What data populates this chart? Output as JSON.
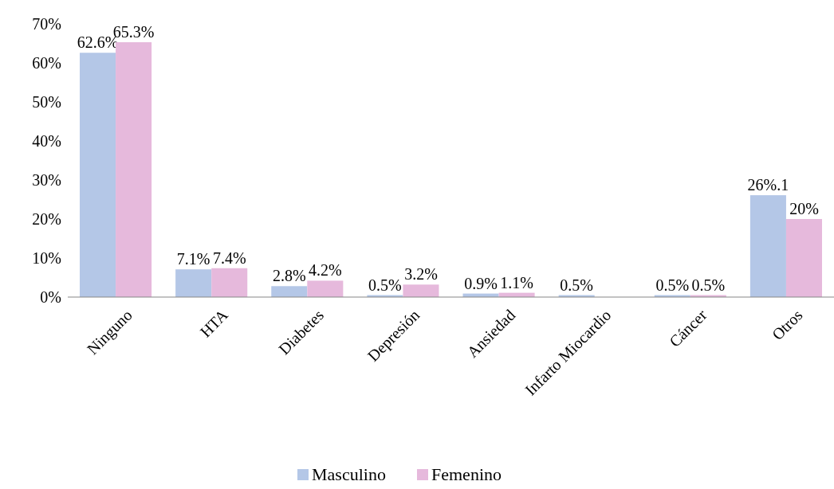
{
  "chart_data": {
    "type": "bar",
    "categories": [
      "Ninguno",
      "HTA",
      "Diabetes",
      "Depresión",
      "Ansiedad",
      "Infarto Miocardio",
      "Cáncer",
      "Otros"
    ],
    "series": [
      {
        "name": "Masculino",
        "color": "#b4c7e7",
        "values": [
          62.6,
          7.1,
          2.8,
          0.5,
          0.9,
          0.5,
          0.5,
          26.1
        ],
        "value_labels": [
          "62.6%",
          "7.1%",
          "2.8%",
          "0.5%",
          "0.9%",
          "0.5%",
          "0.5%",
          "26%.1"
        ]
      },
      {
        "name": "Femenino",
        "color": "#e6b9dc",
        "values": [
          65.3,
          7.4,
          4.2,
          3.2,
          1.1,
          null,
          0.5,
          20
        ],
        "value_labels": [
          "65.3%",
          "7.4%",
          "4.2%",
          "3.2%",
          "1.1%",
          null,
          "0.5%",
          "20%"
        ]
      }
    ],
    "ylim": [
      0,
      70
    ],
    "yticks": [
      {
        "value": 0,
        "label": "0%"
      },
      {
        "value": 10,
        "label": "10%"
      },
      {
        "value": 20,
        "label": "20%"
      },
      {
        "value": 30,
        "label": "30%"
      },
      {
        "value": 40,
        "label": "40%"
      },
      {
        "value": 50,
        "label": "50%"
      },
      {
        "value": 60,
        "label": "60%"
      },
      {
        "value": 70,
        "label": "70%"
      }
    ],
    "grid": false,
    "legend": "bottom"
  }
}
